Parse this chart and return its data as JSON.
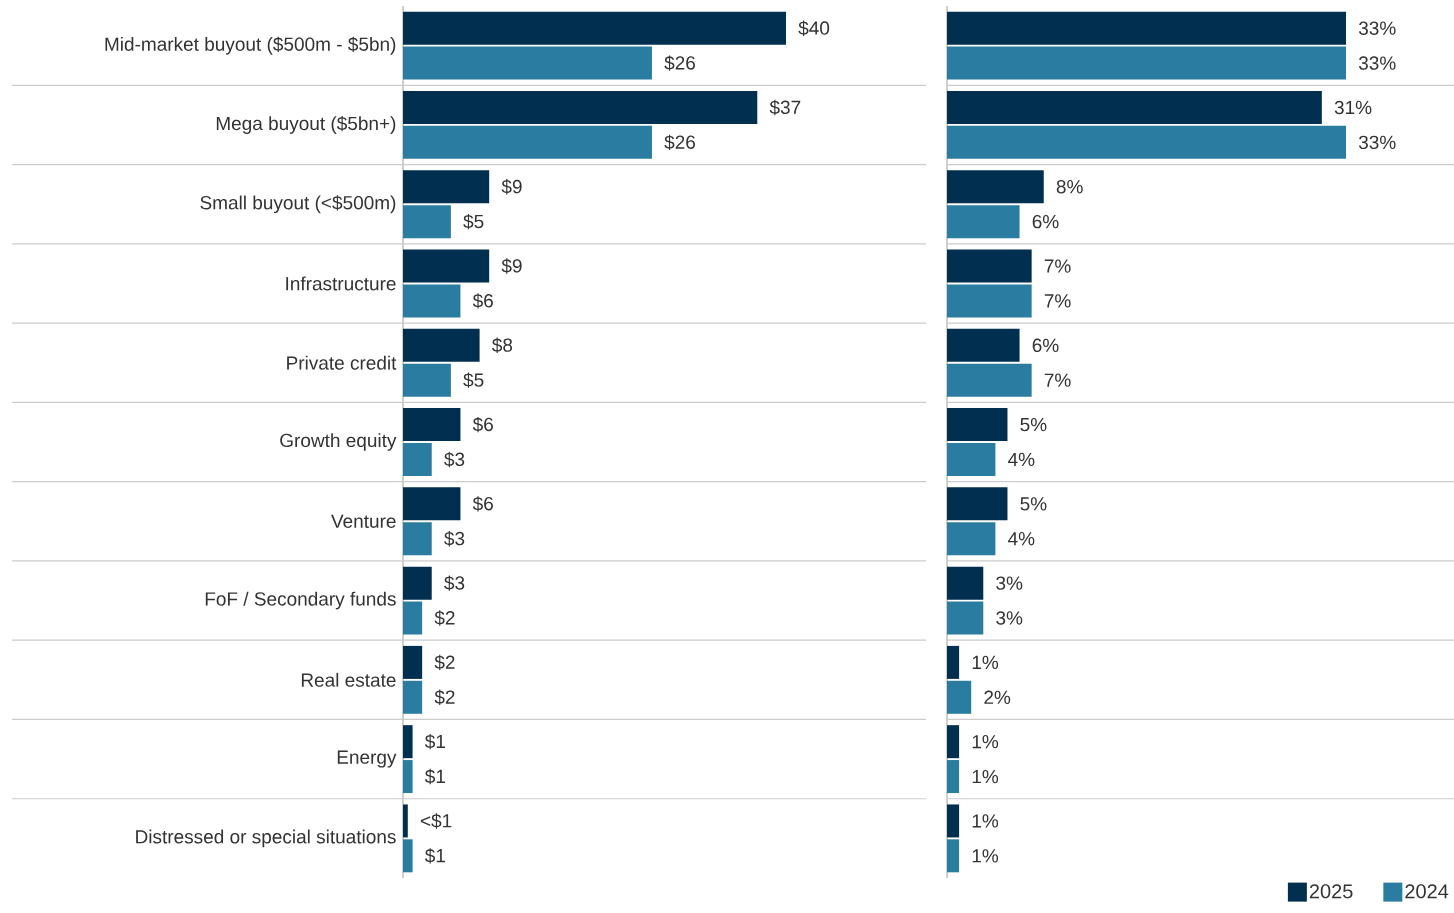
{
  "chart_data": [
    {
      "type": "bar",
      "orientation": "horizontal",
      "categories": [
        "Mid-market buyout ($500m - $5bn)",
        "Mega buyout ($5bn+)",
        "Small buyout (<$500m)",
        "Infrastructure",
        "Private credit",
        "Growth equity",
        "Venture",
        "FoF / Secondary funds",
        "Real estate",
        "Energy",
        "Distressed or special situations"
      ],
      "grid": "y",
      "tick_labels": "y",
      "series": [
        {
          "color": "#002f4f",
          "values": [
            40,
            37,
            9,
            9,
            8,
            6,
            6,
            3,
            2,
            1,
            0.5
          ],
          "value_labels": [
            "$40",
            "$37",
            "$9",
            "$9",
            "$8",
            "$6",
            "$6",
            "$3",
            "$2",
            "$1",
            "<$1"
          ]
        },
        {
          "color": "#2a7ca1",
          "values": [
            26,
            26,
            5,
            6,
            5,
            3,
            3,
            2,
            2,
            1,
            1
          ],
          "value_labels": [
            "$26",
            "$26",
            "$5",
            "$6",
            "$5",
            "$3",
            "$3",
            "$2",
            "$2",
            "$1",
            "$1"
          ]
        }
      ]
    },
    {
      "type": "bar",
      "orientation": "horizontal",
      "categories": [
        null,
        null,
        null,
        null,
        null,
        null,
        null,
        null,
        null,
        null,
        null
      ],
      "grid": "y",
      "tick_labels": false,
      "legend": "bottom right",
      "series": [
        {
          "name": "2025",
          "color": "#002f4f",
          "values": [
            33,
            31,
            8,
            7,
            6,
            5,
            5,
            3,
            1,
            1,
            1
          ],
          "value_labels": [
            "33%",
            "31%",
            "8%",
            "7%",
            "6%",
            "5%",
            "5%",
            "3%",
            "1%",
            "1%",
            "1%"
          ]
        },
        {
          "name": "2024",
          "color": "#2a7ca1",
          "values": [
            33,
            33,
            6,
            7,
            7,
            4,
            4,
            3,
            2,
            1,
            1
          ],
          "value_labels": [
            "33%",
            "33%",
            "6%",
            "7%",
            "7%",
            "4%",
            "4%",
            "3%",
            "2%",
            "1%",
            "1%"
          ]
        }
      ]
    }
  ]
}
